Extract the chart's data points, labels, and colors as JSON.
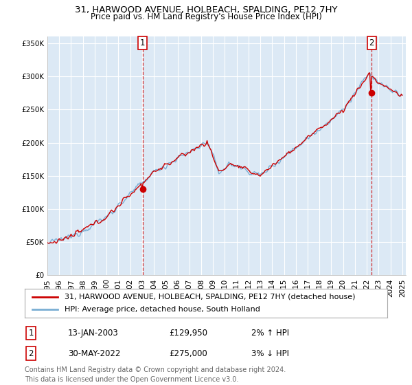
{
  "title": "31, HARWOOD AVENUE, HOLBEACH, SPALDING, PE12 7HY",
  "subtitle": "Price paid vs. HM Land Registry's House Price Index (HPI)",
  "ylabel_ticks": [
    "£0",
    "£50K",
    "£100K",
    "£150K",
    "£200K",
    "£250K",
    "£300K",
    "£350K"
  ],
  "ylim": [
    0,
    360000
  ],
  "yticks": [
    0,
    50000,
    100000,
    150000,
    200000,
    250000,
    300000,
    350000
  ],
  "sale1_date": "13-JAN-2003",
  "sale1_price": 129950,
  "sale1_year": 2003.04,
  "sale2_date": "30-MAY-2022",
  "sale2_price": 275000,
  "sale2_year": 2022.41,
  "sale1_hpi_change": "2% ↑ HPI",
  "sale2_hpi_change": "3% ↓ HPI",
  "legend_line1": "31, HARWOOD AVENUE, HOLBEACH, SPALDING, PE12 7HY (detached house)",
  "legend_line2": "HPI: Average price, detached house, South Holland",
  "footer": "Contains HM Land Registry data © Crown copyright and database right 2024.\nThis data is licensed under the Open Government Licence v3.0.",
  "hpi_color": "#7aaed4",
  "sale_color": "#cc0000",
  "marker_color": "#cc0000",
  "bg_color": "#ffffff",
  "plot_bg_color": "#dce9f5",
  "grid_color": "#ffffff",
  "title_fontsize": 9.5,
  "subtitle_fontsize": 8.5,
  "tick_fontsize": 7.5,
  "legend_fontsize": 8.0,
  "footer_fontsize": 7.0,
  "annotation_fontsize": 8.5
}
